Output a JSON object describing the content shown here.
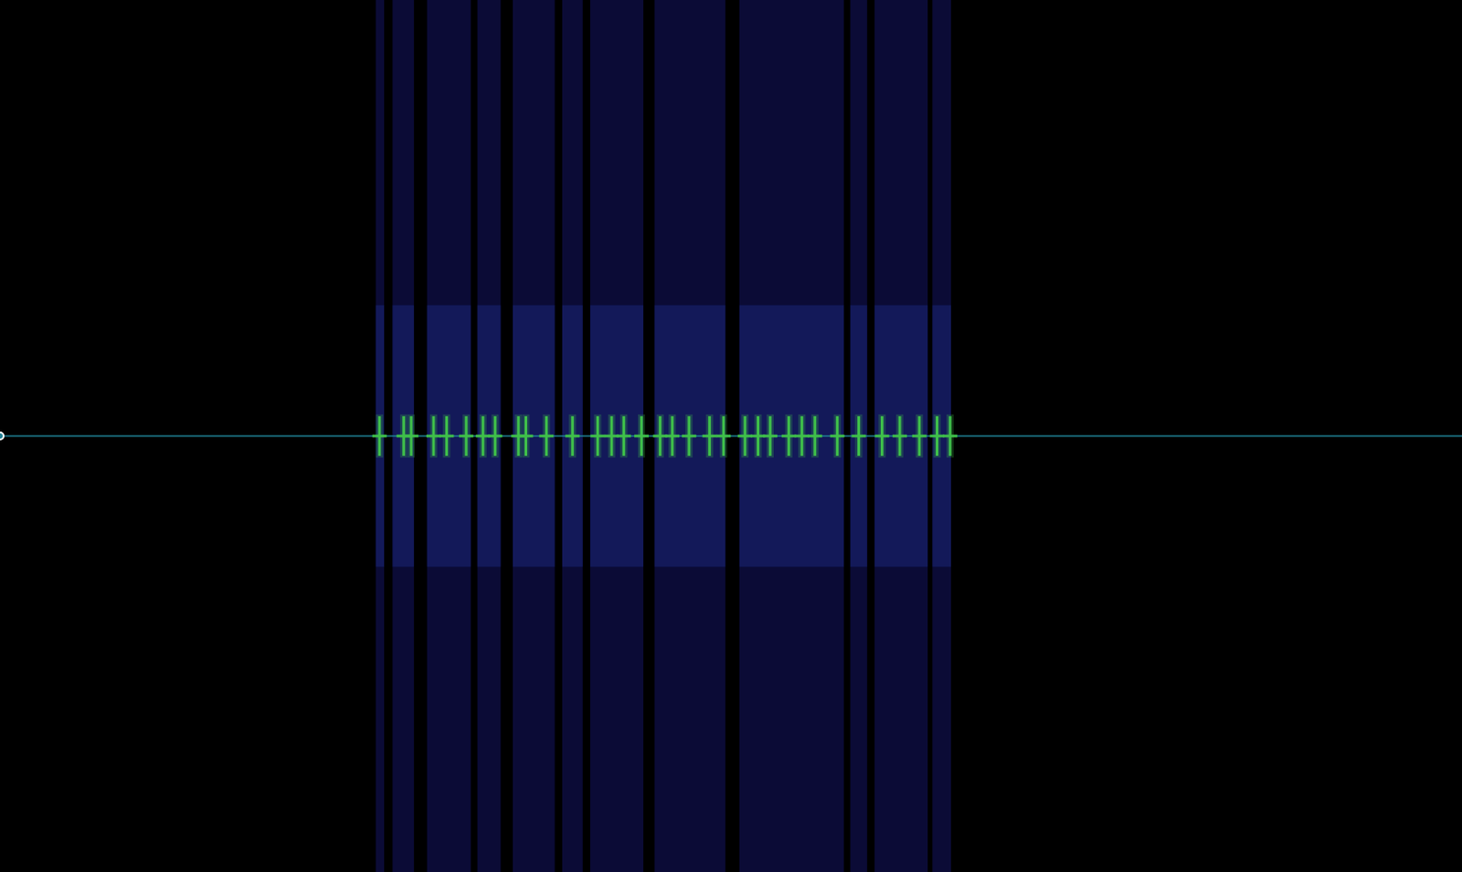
{
  "chart_data": {
    "type": "spectrogram",
    "tick_labels": false,
    "xlim": [
      0,
      1568
    ],
    "ylim": [
      -1,
      1
    ],
    "noise_band": [
      -0.3,
      0.3
    ],
    "carrier": {
      "x": [
        0,
        1568
      ],
      "values": [
        0,
        0
      ],
      "color": "#1f7f93"
    },
    "bursts": {
      "start": [
        403,
        421,
        458,
        512,
        550,
        603,
        633,
        702,
        793,
        912,
        938,
        1000
      ],
      "end": [
        412,
        444,
        505,
        537,
        595,
        625,
        690,
        778,
        905,
        930,
        995,
        1020
      ],
      "color": "#0d0d40"
    },
    "spikes": {
      "x": [
        407,
        433,
        441,
        465,
        479,
        500,
        518,
        531,
        556,
        564,
        586,
        614,
        641,
        656,
        669,
        688,
        708,
        721,
        739,
        761,
        776,
        799,
        813,
        826,
        846,
        860,
        874,
        898,
        921,
        946,
        965,
        986,
        1005,
        1019
      ],
      "values": [
        0,
        0,
        0,
        0,
        0,
        0,
        0,
        0,
        0,
        0,
        0,
        0,
        0,
        0,
        0,
        0,
        0,
        0,
        0,
        0,
        0,
        0,
        0,
        0,
        0,
        0,
        0,
        0,
        0,
        0,
        0,
        0,
        0,
        0
      ],
      "color": "#3fc04a"
    }
  }
}
